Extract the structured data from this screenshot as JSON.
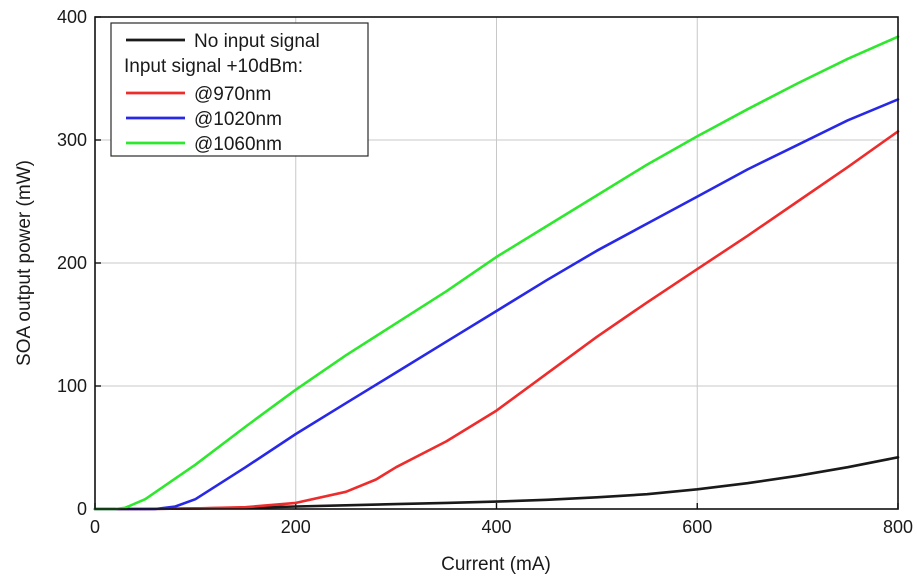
{
  "chart_data": {
    "type": "line",
    "xlabel": "Current (mA)",
    "ylabel": "SOA output power (mW)",
    "xlim": [
      0,
      800
    ],
    "ylim": [
      0,
      400
    ],
    "xticks": [
      0,
      200,
      400,
      600,
      800
    ],
    "yticks": [
      0,
      100,
      200,
      300,
      400
    ],
    "grid": true,
    "legend": {
      "position": "top-left",
      "header": "Input signal +10dBm:"
    },
    "series": [
      {
        "name": "No input signal",
        "color": "#1a1a1a",
        "x": [
          0,
          50,
          100,
          150,
          200,
          250,
          300,
          350,
          400,
          450,
          500,
          550,
          600,
          650,
          700,
          750,
          800
        ],
        "y": [
          0,
          0,
          0.5,
          1,
          2,
          3,
          4,
          5,
          6,
          7.5,
          9.5,
          12,
          16,
          21,
          27,
          34,
          42
        ]
      },
      {
        "name": "@970nm",
        "color": "#ee2c2c",
        "x": [
          0,
          50,
          100,
          150,
          200,
          250,
          280,
          300,
          350,
          400,
          450,
          500,
          550,
          600,
          650,
          700,
          750,
          800
        ],
        "y": [
          0,
          0,
          0.5,
          1.5,
          5,
          14,
          24,
          34,
          55,
          80,
          110,
          140,
          168,
          195,
          222,
          250,
          278,
          307
        ]
      },
      {
        "name": "@1020nm",
        "color": "#2828e8",
        "x": [
          0,
          60,
          80,
          100,
          150,
          200,
          250,
          300,
          350,
          400,
          450,
          500,
          550,
          600,
          650,
          700,
          750,
          800
        ],
        "y": [
          0,
          0,
          2,
          8,
          34,
          61,
          86,
          111,
          136,
          161,
          186,
          210,
          232,
          254,
          276,
          296,
          316,
          333
        ]
      },
      {
        "name": "@1060nm",
        "color": "#2ee82e",
        "x": [
          0,
          20,
          30,
          50,
          100,
          150,
          200,
          250,
          300,
          350,
          400,
          450,
          500,
          550,
          600,
          650,
          700,
          750,
          800
        ],
        "y": [
          0,
          0,
          1,
          8,
          36,
          67,
          97,
          125,
          151,
          177,
          205,
          230,
          255,
          280,
          303,
          325,
          346,
          366,
          384
        ]
      }
    ]
  }
}
